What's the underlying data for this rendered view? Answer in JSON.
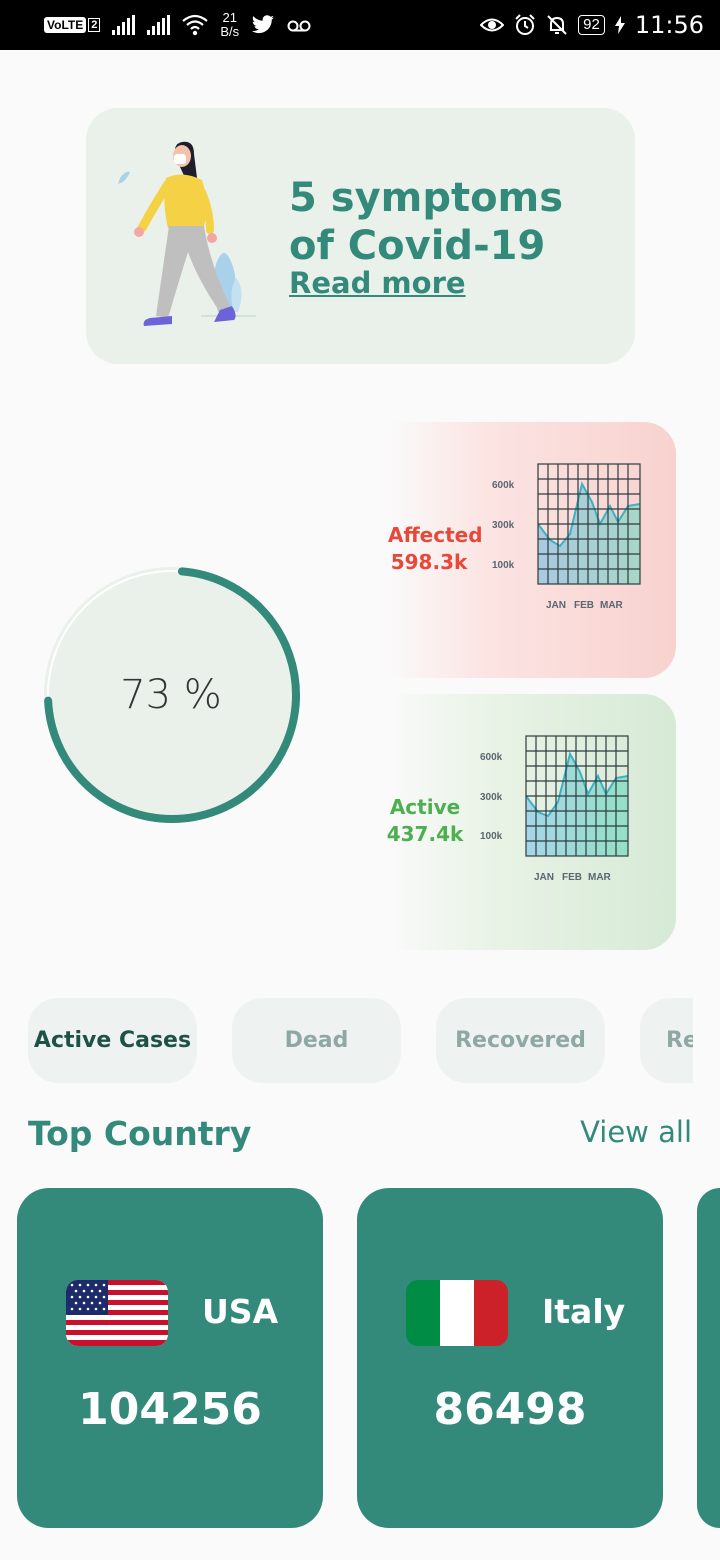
{
  "status_bar": {
    "volte": "VoLTE",
    "sim": "2",
    "net_speed_value": "21",
    "net_speed_unit": "B/s",
    "battery": "92",
    "time": "11:56"
  },
  "banner": {
    "title": "5 symptoms of Covid-19",
    "link": "Read more"
  },
  "progress": {
    "label": "73 %",
    "value": 0.73
  },
  "stats": {
    "affected": {
      "label": "Affected",
      "value": "598.3k",
      "color": "#e8473a"
    },
    "active": {
      "label": "Active",
      "value": "437.4k",
      "color": "#4caf50"
    }
  },
  "chart_data": [
    {
      "type": "area",
      "series_label": "Affected",
      "y_ticks": [
        "600k",
        "300k",
        "100k"
      ],
      "x_ticks": [
        "JAN",
        "FEB",
        "MAR"
      ],
      "grid": true
    },
    {
      "type": "area",
      "series_label": "Active",
      "y_ticks": [
        "600k",
        "300k",
        "100k"
      ],
      "x_ticks": [
        "JAN",
        "FEB",
        "MAR"
      ],
      "grid": true
    }
  ],
  "tabs": [
    "Active Cases",
    "Dead",
    "Recovered",
    "Re"
  ],
  "top_country": {
    "title": "Top Country",
    "view_all": "View all",
    "countries": [
      {
        "name": "USA",
        "count": "104256",
        "flag": "usa-flag"
      },
      {
        "name": "Italy",
        "count": "86498",
        "flag": "italy-flag"
      }
    ]
  },
  "colors": {
    "primary": "#338a7b",
    "banner_bg": "#e9f1ea",
    "affected": "#e8473a",
    "active": "#4caf50"
  }
}
